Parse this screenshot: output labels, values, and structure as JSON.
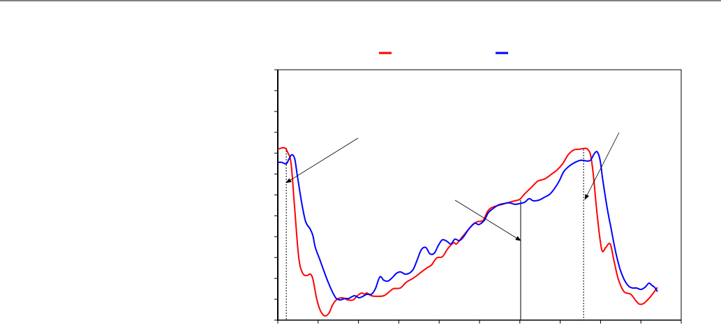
{
  "chart_data": {
    "type": "line",
    "title": "",
    "xlabel": "",
    "ylabel": "",
    "xlim": [
      0,
      100
    ],
    "ylim": [
      0,
      120
    ],
    "grid": false,
    "legend": "top-center",
    "colors": {
      "series_1": "#ff0000",
      "series_2": "#0000ff",
      "axis": "#000000"
    },
    "x_ticks": [
      0,
      10,
      20,
      30,
      40,
      50,
      60,
      70,
      80,
      90,
      100
    ],
    "y_ticks": [
      0,
      10,
      20,
      30,
      40,
      50,
      60,
      70,
      80,
      90,
      100,
      110,
      120
    ],
    "markers": [
      {
        "x": 2.1,
        "style": "dotted"
      },
      {
        "x": 60.2,
        "style": "solid"
      },
      {
        "x": 75.8,
        "style": "dotted"
      }
    ],
    "series": [
      {
        "color": "#ff0000",
        "x": [
          0,
          1.6,
          2.4,
          3.3,
          4.2,
          5.2,
          6.2,
          7.3,
          8.0,
          8.7,
          9.7,
          10.7,
          11.8,
          12.8,
          13.5,
          14.5,
          15.9,
          17.3,
          18.7,
          19.7,
          20.8,
          21.5,
          22.1,
          23.2,
          24.6,
          26.3,
          27.7,
          28.7,
          30.4,
          31.8,
          33.2,
          34.3,
          35.6,
          37.0,
          38.1,
          39.4,
          40.8,
          42.2,
          43.6,
          44.3,
          45.7,
          47.1,
          48.4,
          49.5,
          50.9,
          51.9,
          52.9,
          54.3,
          55.7,
          57.4,
          58.8,
          60.0,
          61.2,
          63.0,
          64.4,
          65.4,
          66.4,
          67.8,
          69.2,
          70.6,
          72.0,
          73.4,
          74.7,
          76.1,
          76.8,
          77.5,
          78.2,
          79.2,
          80.3,
          81.3,
          82.4,
          83.4,
          84.4,
          85.8,
          87.5,
          88.6,
          89.6,
          90.7,
          92.0,
          93.1,
          94.1
        ],
        "y": [
          81.9,
          82.6,
          80.6,
          74.9,
          53.2,
          29.8,
          22.4,
          21.4,
          22.1,
          19.7,
          9.7,
          4.0,
          2.0,
          3.7,
          7.0,
          9.7,
          10.7,
          9.7,
          9.7,
          11.7,
          13.0,
          12.4,
          13.0,
          11.7,
          11.4,
          11.7,
          13.7,
          15.1,
          15.4,
          18.1,
          19.7,
          21.1,
          23.1,
          25.1,
          26.4,
          29.8,
          30.4,
          34.4,
          37.1,
          36.5,
          39.8,
          43.1,
          45.8,
          47.2,
          47.8,
          51.8,
          53.8,
          54.8,
          55.5,
          56.5,
          57.2,
          57.9,
          60.5,
          63.9,
          66.6,
          67.2,
          67.9,
          69.9,
          71.9,
          74.9,
          79.3,
          81.6,
          81.9,
          82.3,
          81.9,
          79.3,
          69.9,
          49.8,
          33.8,
          34.8,
          36.5,
          27.8,
          19.7,
          13.7,
          12.4,
          9.7,
          7.7,
          8.0,
          10.4,
          13.0,
          15.7
        ]
      },
      {
        "color": "#0000ff",
        "x": [
          0,
          1.0,
          2.1,
          2.8,
          3.5,
          4.2,
          4.8,
          5.9,
          6.9,
          8.0,
          8.7,
          9.3,
          10.4,
          11.4,
          12.5,
          13.5,
          14.5,
          15.6,
          16.6,
          17.6,
          19.0,
          20.1,
          21.1,
          22.1,
          23.2,
          24.2,
          25.3,
          26.3,
          27.3,
          28.4,
          29.4,
          30.4,
          31.5,
          32.5,
          33.6,
          34.6,
          35.6,
          36.7,
          37.7,
          38.8,
          39.8,
          40.8,
          41.9,
          42.9,
          43.9,
          45.0,
          46.0,
          47.4,
          48.8,
          49.8,
          51.2,
          52.2,
          53.6,
          54.7,
          56.1,
          57.4,
          58.8,
          60.0,
          61.2,
          62.3,
          63.3,
          64.7,
          66.1,
          67.5,
          68.9,
          69.9,
          70.9,
          72.3,
          73.7,
          75.1,
          76.5,
          77.5,
          78.5,
          79.2,
          79.9,
          80.6,
          81.7,
          82.7,
          83.7,
          84.8,
          85.8,
          86.9,
          87.9,
          88.9,
          90.0,
          91.0,
          92.0,
          92.7,
          93.4,
          94.1
        ],
        "y": [
          75.6,
          75.6,
          74.9,
          77.3,
          79.3,
          77.3,
          69.9,
          56.5,
          47.2,
          43.8,
          40.5,
          34.8,
          29.1,
          23.7,
          18.1,
          13.7,
          10.4,
          9.7,
          10.4,
          10.4,
          11.7,
          10.7,
          11.4,
          12.4,
          12.4,
          15.1,
          20.7,
          19.1,
          18.7,
          20.4,
          22.4,
          23.1,
          22.1,
          22.4,
          24.4,
          29.1,
          33.8,
          34.8,
          31.8,
          32.1,
          35.8,
          38.5,
          37.8,
          36.5,
          38.8,
          38.1,
          39.8,
          43.8,
          46.5,
          45.8,
          47.8,
          51.5,
          53.8,
          55.2,
          55.9,
          56.2,
          55.5,
          55.9,
          56.5,
          58.2,
          57.2,
          57.5,
          58.9,
          60.5,
          63.9,
          67.2,
          71.2,
          73.9,
          75.6,
          76.6,
          76.3,
          76.6,
          79.9,
          80.6,
          76.6,
          66.6,
          53.2,
          43.1,
          33.1,
          24.7,
          19.7,
          16.4,
          15.4,
          15.4,
          14.7,
          15.7,
          17.7,
          16.7,
          15.7,
          13.7
        ]
      }
    ]
  }
}
